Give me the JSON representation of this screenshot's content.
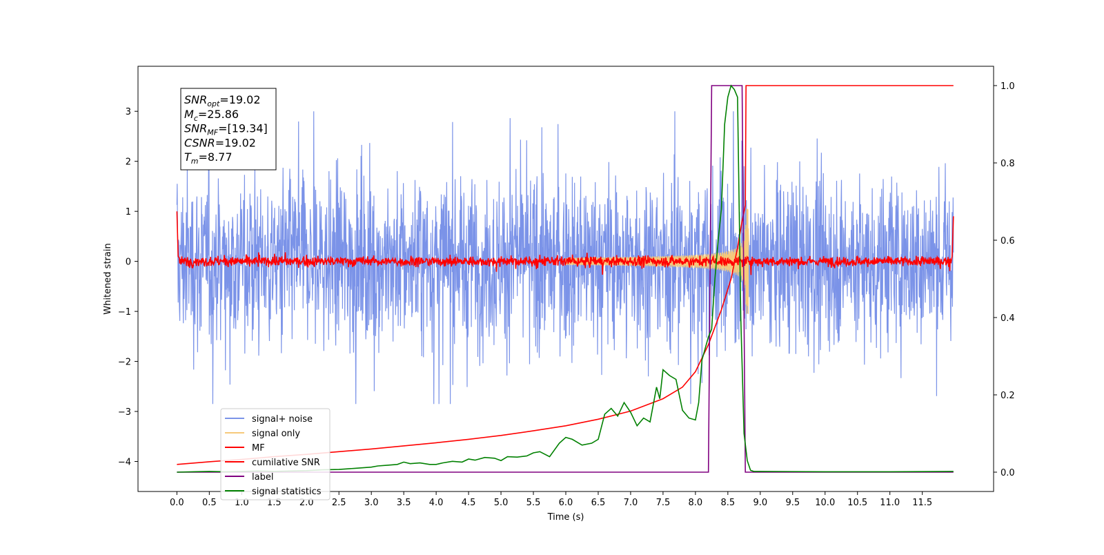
{
  "chart_data": {
    "type": "line",
    "title": "",
    "xlabel": "Time (s)",
    "ylabel": "Whitened strain",
    "y2label": "",
    "xlim": [
      -0.6,
      12.6
    ],
    "ylim": [
      -4.6,
      3.9
    ],
    "y2lim": [
      -0.05,
      1.05
    ],
    "xticks": [
      0.0,
      0.5,
      1.0,
      1.5,
      2.0,
      2.5,
      3.0,
      3.5,
      4.0,
      4.5,
      5.0,
      5.5,
      6.0,
      6.5,
      7.0,
      7.5,
      8.0,
      8.5,
      9.0,
      9.5,
      10.0,
      10.5,
      11.0,
      11.5
    ],
    "xtick_labels": [
      "0.0",
      "0.5",
      "1.0",
      "1.5",
      "2.0",
      "2.5",
      "3.0",
      "3.5",
      "4.0",
      "4.5",
      "5.0",
      "5.5",
      "6.0",
      "6.5",
      "7.0",
      "7.5",
      "8.0",
      "8.5",
      "9.0",
      "9.5",
      "10.0",
      "10.5",
      "11.0",
      "11.5"
    ],
    "yticks": [
      -4,
      -3,
      -2,
      -1,
      0,
      1,
      2,
      3
    ],
    "ytick_labels": [
      "−4",
      "−3",
      "−2",
      "−1",
      "0",
      "1",
      "2",
      "3"
    ],
    "y2ticks": [
      0.0,
      0.2,
      0.4,
      0.6,
      0.8,
      1.0
    ],
    "y2tick_labels": [
      "0.0",
      "0.2",
      "0.4",
      "0.6",
      "0.8",
      "1.0"
    ],
    "grid": false,
    "legend_position": "lower-left",
    "annotation": {
      "lines": [
        {
          "base": "SNR",
          "sub": "opt",
          "rest": "=19.02"
        },
        {
          "base": "M",
          "sub": "c",
          "rest": "=25.86"
        },
        {
          "base": "SNR",
          "sub": "MF",
          "rest": "=[19.34]"
        },
        {
          "base": "CSNR",
          "sub": "",
          "rest": "=19.02"
        },
        {
          "base": "T",
          "sub": "m",
          "rest": "=8.77"
        }
      ]
    },
    "series": [
      {
        "name": "signal+ noise",
        "color": "#7b93e8",
        "axis": "left",
        "kind": "noise",
        "x_range": [
          0.0,
          11.98
        ],
        "amplitude_typical": 1.0,
        "extremes": [
          3.0,
          -2.85
        ],
        "peak_time": 8.77
      },
      {
        "name": "signal only",
        "color": "#f6c97a",
        "axis": "left",
        "kind": "chirp",
        "x_range": [
          0.0,
          11.98
        ],
        "peak_time": 8.77,
        "peak_amplitude": 1.0
      },
      {
        "name": "MF",
        "color": "#ff0000",
        "axis": "left",
        "kind": "mf_noise",
        "x_range": [
          0.0,
          11.98
        ],
        "amplitude_typical": 0.05,
        "end_values": [
          1.0,
          0.9
        ]
      },
      {
        "name": "cumilative SNR",
        "color": "#ff0000",
        "axis": "right",
        "x": [
          0.0,
          0.5,
          1.0,
          1.5,
          2.0,
          2.5,
          3.0,
          3.5,
          4.0,
          4.5,
          5.0,
          5.5,
          6.0,
          6.5,
          7.0,
          7.5,
          7.8,
          8.0,
          8.2,
          8.4,
          8.55,
          8.65,
          8.72,
          8.77,
          8.78,
          11.98
        ],
        "y": [
          0.02,
          0.027,
          0.033,
          0.04,
          0.046,
          0.053,
          0.06,
          0.068,
          0.076,
          0.085,
          0.095,
          0.107,
          0.12,
          0.137,
          0.158,
          0.19,
          0.22,
          0.26,
          0.33,
          0.42,
          0.5,
          0.58,
          0.65,
          0.69,
          1.0,
          1.0
        ]
      },
      {
        "name": "label",
        "color": "#800080",
        "axis": "right",
        "x": [
          0.0,
          8.2,
          8.25,
          8.72,
          8.77,
          11.98
        ],
        "y": [
          0.0,
          0.0,
          1.0,
          1.0,
          0.0,
          0.0
        ]
      },
      {
        "name": "signal statistics",
        "color": "#008000",
        "axis": "right",
        "x": [
          0.0,
          0.25,
          0.5,
          0.75,
          1.0,
          1.25,
          1.5,
          1.75,
          2.0,
          2.25,
          2.5,
          2.75,
          3.0,
          3.1,
          3.25,
          3.4,
          3.5,
          3.6,
          3.75,
          3.9,
          4.0,
          4.1,
          4.25,
          4.4,
          4.5,
          4.6,
          4.75,
          4.9,
          5.0,
          5.1,
          5.25,
          5.4,
          5.5,
          5.6,
          5.75,
          5.9,
          6.0,
          6.1,
          6.25,
          6.4,
          6.5,
          6.6,
          6.7,
          6.8,
          6.9,
          7.0,
          7.1,
          7.2,
          7.3,
          7.4,
          7.45,
          7.5,
          7.6,
          7.7,
          7.8,
          7.9,
          8.0,
          8.05,
          8.1,
          8.15,
          8.2,
          8.25,
          8.3,
          8.35,
          8.4,
          8.45,
          8.5,
          8.55,
          8.6,
          8.65,
          8.7,
          8.75,
          8.8,
          8.85,
          8.9,
          9.0,
          10.0,
          11.0,
          11.98
        ],
        "y": [
          0.0,
          0.001,
          0.002,
          0.001,
          0.002,
          0.003,
          0.002,
          0.003,
          0.004,
          0.006,
          0.007,
          0.01,
          0.013,
          0.016,
          0.018,
          0.02,
          0.026,
          0.022,
          0.024,
          0.02,
          0.02,
          0.024,
          0.028,
          0.026,
          0.034,
          0.031,
          0.038,
          0.036,
          0.03,
          0.04,
          0.039,
          0.042,
          0.05,
          0.053,
          0.04,
          0.075,
          0.09,
          0.085,
          0.07,
          0.075,
          0.085,
          0.15,
          0.165,
          0.145,
          0.18,
          0.155,
          0.12,
          0.14,
          0.13,
          0.22,
          0.19,
          0.265,
          0.25,
          0.24,
          0.16,
          0.14,
          0.135,
          0.18,
          0.29,
          0.32,
          0.35,
          0.37,
          0.5,
          0.6,
          0.68,
          0.9,
          0.97,
          1.0,
          0.99,
          0.97,
          0.4,
          0.1,
          0.03,
          0.005,
          0.002,
          0.002,
          0.001,
          0.001,
          0.002
        ]
      }
    ]
  }
}
